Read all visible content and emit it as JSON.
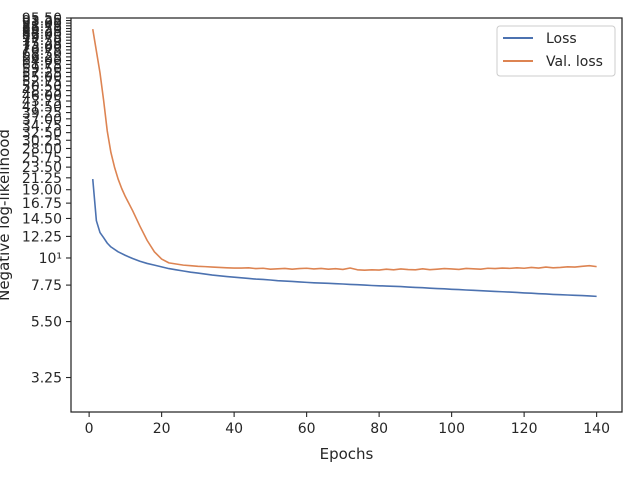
{
  "chart_data": {
    "type": "line",
    "xlabel": "Epochs",
    "ylabel": "Negative log-likelihood",
    "yscale": "log",
    "xlim": [
      -5,
      147
    ],
    "ylim": [
      2.35,
      95.5
    ],
    "x_ticks": [
      0,
      20,
      40,
      60,
      80,
      100,
      120,
      140
    ],
    "y_ticks": [
      {
        "value": 3.25,
        "label": "3.25"
      },
      {
        "value": 5.5,
        "label": "5.50"
      },
      {
        "value": 7.75,
        "label": "7.75"
      },
      {
        "value": 10,
        "label": "10¹"
      },
      {
        "value": 12.25,
        "label": "12.25"
      },
      {
        "value": 14.5,
        "label": "14.50"
      },
      {
        "value": 16.75,
        "label": "16.75"
      },
      {
        "value": 19.0,
        "label": "19.00"
      },
      {
        "value": 21.25,
        "label": "21.25"
      },
      {
        "value": 23.5,
        "label": "23.50"
      },
      {
        "value": 25.75,
        "label": "25.75"
      },
      {
        "value": 28.0,
        "label": "28.00"
      },
      {
        "value": 30.25,
        "label": "30.25"
      },
      {
        "value": 32.5,
        "label": "32.50"
      },
      {
        "value": 34.75,
        "label": "34.75"
      },
      {
        "value": 37.0,
        "label": "37.00"
      },
      {
        "value": 39.25,
        "label": "39.25"
      },
      {
        "value": 41.5,
        "label": "41.50"
      },
      {
        "value": 43.75,
        "label": "43.75"
      },
      {
        "value": 46.0,
        "label": "46.00"
      },
      {
        "value": 48.25,
        "label": "48.25"
      },
      {
        "value": 50.5,
        "label": "50.50"
      },
      {
        "value": 52.75,
        "label": "52.75"
      },
      {
        "value": 55.0,
        "label": "55.00"
      },
      {
        "value": 57.25,
        "label": "57.25"
      },
      {
        "value": 59.5,
        "label": "59.50"
      },
      {
        "value": 61.75,
        "label": "61.75"
      },
      {
        "value": 64.0,
        "label": "64.00"
      },
      {
        "value": 66.25,
        "label": "66.25"
      },
      {
        "value": 68.5,
        "label": "68.50"
      },
      {
        "value": 70.75,
        "label": "70.75"
      },
      {
        "value": 73.0,
        "label": "73.00"
      },
      {
        "value": 75.25,
        "label": "75.25"
      },
      {
        "value": 77.5,
        "label": "77.50"
      },
      {
        "value": 79.75,
        "label": "79.75"
      },
      {
        "value": 82.0,
        "label": "82.00"
      },
      {
        "value": 84.25,
        "label": "84.25"
      },
      {
        "value": 86.5,
        "label": "86.50"
      },
      {
        "value": 88.75,
        "label": "88.75"
      },
      {
        "value": 91.0,
        "label": "91.00"
      },
      {
        "value": 93.25,
        "label": "93.25"
      },
      {
        "value": 95.5,
        "label": "95.50"
      }
    ],
    "grid": false,
    "legend": "top-right",
    "series": [
      {
        "name": "Loss",
        "color": "#4c72b0",
        "x": [
          1,
          2,
          3,
          4,
          5,
          6,
          8,
          10,
          12,
          14,
          16,
          18,
          20,
          22,
          24,
          26,
          28,
          30,
          32,
          34,
          36,
          38,
          40,
          42,
          44,
          46,
          48,
          50,
          52,
          54,
          56,
          58,
          60,
          62,
          64,
          66,
          68,
          70,
          72,
          74,
          76,
          78,
          80,
          82,
          84,
          86,
          88,
          90,
          92,
          94,
          96,
          98,
          100,
          102,
          104,
          106,
          108,
          110,
          112,
          114,
          116,
          118,
          120,
          122,
          124,
          126,
          128,
          130,
          132,
          134,
          136,
          138,
          140
        ],
        "y": [
          21.0,
          14.2,
          12.7,
          12.1,
          11.5,
          11.1,
          10.6,
          10.25,
          9.95,
          9.7,
          9.5,
          9.35,
          9.2,
          9.05,
          8.95,
          8.85,
          8.75,
          8.68,
          8.6,
          8.52,
          8.46,
          8.4,
          8.35,
          8.3,
          8.25,
          8.2,
          8.17,
          8.13,
          8.08,
          8.05,
          8.02,
          7.98,
          7.95,
          7.92,
          7.9,
          7.88,
          7.85,
          7.83,
          7.8,
          7.78,
          7.75,
          7.72,
          7.7,
          7.68,
          7.66,
          7.64,
          7.61,
          7.58,
          7.56,
          7.53,
          7.5,
          7.48,
          7.45,
          7.43,
          7.4,
          7.38,
          7.35,
          7.33,
          7.3,
          7.28,
          7.26,
          7.23,
          7.2,
          7.18,
          7.15,
          7.13,
          7.1,
          7.08,
          7.06,
          7.04,
          7.02,
          7.0,
          6.97
        ]
      },
      {
        "name": "Val. loss",
        "color": "#dd8452",
        "x": [
          1,
          2,
          3,
          4,
          5,
          6,
          7,
          8,
          9,
          10,
          12,
          14,
          16,
          18,
          20,
          22,
          24,
          26,
          28,
          30,
          32,
          34,
          36,
          38,
          40,
          42,
          44,
          46,
          48,
          50,
          52,
          54,
          56,
          58,
          60,
          62,
          64,
          66,
          68,
          70,
          72,
          74,
          76,
          78,
          80,
          82,
          84,
          86,
          88,
          90,
          92,
          94,
          96,
          98,
          100,
          102,
          104,
          106,
          108,
          110,
          112,
          114,
          116,
          118,
          120,
          122,
          124,
          126,
          128,
          130,
          132,
          134,
          136,
          138,
          140
        ],
        "y": [
          86.0,
          70.0,
          57.0,
          44.0,
          33.0,
          27.0,
          23.5,
          21.0,
          19.2,
          17.8,
          15.6,
          13.5,
          11.8,
          10.6,
          9.9,
          9.55,
          9.45,
          9.35,
          9.3,
          9.25,
          9.22,
          9.18,
          9.15,
          9.12,
          9.1,
          9.1,
          9.12,
          9.05,
          9.08,
          9.0,
          9.03,
          9.06,
          9.0,
          9.05,
          9.08,
          9.02,
          9.06,
          9.0,
          9.04,
          8.98,
          9.1,
          8.95,
          8.92,
          8.95,
          8.93,
          9.0,
          8.95,
          9.02,
          8.97,
          8.95,
          9.03,
          8.96,
          9.0,
          9.05,
          9.02,
          8.98,
          9.06,
          9.03,
          9.0,
          9.08,
          9.05,
          9.1,
          9.07,
          9.12,
          9.08,
          9.15,
          9.1,
          9.18,
          9.12,
          9.15,
          9.2,
          9.18,
          9.25,
          9.3,
          9.22
        ]
      }
    ]
  }
}
